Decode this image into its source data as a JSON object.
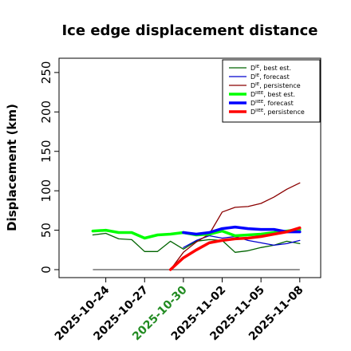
{
  "chart_data": {
    "type": "line",
    "title": "Ice edge displacement distance",
    "xlabel": "",
    "ylabel": "Displacement (km)",
    "ylim": [
      0,
      260
    ],
    "y_ticks": [
      0,
      50,
      100,
      150,
      200,
      250
    ],
    "x_day_range": [
      "2025-10-21",
      "2025-11-09"
    ],
    "x_ticks": [
      {
        "date": "2025-10-24",
        "label": "2025-10-24",
        "color": "#000000"
      },
      {
        "date": "2025-10-27",
        "label": "2025-10-27",
        "color": "#000000"
      },
      {
        "date": "2025-10-30",
        "label": "2025-10-30",
        "color": "#228B22"
      },
      {
        "date": "2025-11-02",
        "label": "2025-11-02",
        "color": "#000000"
      },
      {
        "date": "2025-11-05",
        "label": "2025-11-05",
        "color": "#000000"
      },
      {
        "date": "2025-11-08",
        "label": "2025-11-08",
        "color": "#000000"
      }
    ],
    "reference_line": {
      "value": 0,
      "from": "2025-10-23",
      "to": "2025-11-08",
      "color": "#555555"
    },
    "legend_position": "top-right",
    "series": [
      {
        "name": "D^IE, best est.",
        "label_base": "D",
        "label_sup": "IE",
        "label_rest": ", best est.",
        "color": "#006400",
        "width": 1.3,
        "x": [
          "2025-10-23",
          "2025-10-24",
          "2025-10-25",
          "2025-10-26",
          "2025-10-27",
          "2025-10-28",
          "2025-10-29",
          "2025-10-30",
          "2025-10-31",
          "2025-11-01",
          "2025-11-02",
          "2025-11-03",
          "2025-11-04",
          "2025-11-05",
          "2025-11-06",
          "2025-11-07",
          "2025-11-08"
        ],
        "y": [
          44,
          46,
          39,
          38,
          23,
          23,
          36,
          26,
          36,
          38,
          37,
          22,
          24,
          28,
          31,
          36,
          33
        ]
      },
      {
        "name": "D^IE, forecast",
        "label_base": "D",
        "label_sup": "IE",
        "label_rest": ", forecast",
        "color": "#0000CD",
        "width": 1.3,
        "x": [
          "2025-10-30",
          "2025-10-31",
          "2025-11-01",
          "2025-11-02",
          "2025-11-03",
          "2025-11-04",
          "2025-11-05",
          "2025-11-06",
          "2025-11-07",
          "2025-11-08"
        ],
        "y": [
          28,
          37,
          43,
          40,
          42,
          37,
          34,
          31,
          33,
          37
        ]
      },
      {
        "name": "D^IE, persistence",
        "label_base": "D",
        "label_sup": "IE",
        "label_rest": ", persistence",
        "color": "#8B0000",
        "width": 1.3,
        "x": [
          "2025-10-29",
          "2025-10-30",
          "2025-10-31",
          "2025-11-01",
          "2025-11-02",
          "2025-11-03",
          "2025-11-04",
          "2025-11-05",
          "2025-11-06",
          "2025-11-07",
          "2025-11-08"
        ],
        "y": [
          0,
          22,
          35,
          45,
          73,
          79,
          80,
          84,
          92,
          102,
          110
        ]
      },
      {
        "name": "D^IIEE, best est.",
        "label_base": "D",
        "label_sup": "IIEE",
        "label_rest": ", best est.",
        "color": "#00FF00",
        "width": 3.5,
        "x": [
          "2025-10-23",
          "2025-10-24",
          "2025-10-25",
          "2025-10-26",
          "2025-10-27",
          "2025-10-28",
          "2025-10-29",
          "2025-10-30",
          "2025-10-31",
          "2025-11-01",
          "2025-11-02",
          "2025-11-03",
          "2025-11-04",
          "2025-11-05",
          "2025-11-06",
          "2025-11-07",
          "2025-11-08"
        ],
        "y": [
          49,
          50,
          47,
          47,
          40,
          44,
          45,
          47,
          44,
          45,
          49,
          43,
          44,
          45,
          47,
          49,
          51
        ]
      },
      {
        "name": "D^IIEE, forecast",
        "label_base": "D",
        "label_sup": "IIEE",
        "label_rest": ", forecast",
        "color": "#0000FF",
        "width": 3.5,
        "x": [
          "2025-10-30",
          "2025-10-31",
          "2025-11-01",
          "2025-11-02",
          "2025-11-03",
          "2025-11-04",
          "2025-11-05",
          "2025-11-06",
          "2025-11-07",
          "2025-11-08"
        ],
        "y": [
          47,
          45,
          47,
          52,
          54,
          52,
          51,
          51,
          48,
          48
        ]
      },
      {
        "name": "D^IIEE, persistence",
        "label_base": "D",
        "label_sup": "IIEE",
        "label_rest": ", persistence",
        "color": "#FF0000",
        "width": 3.5,
        "x": [
          "2025-10-29",
          "2025-10-30",
          "2025-10-31",
          "2025-11-01",
          "2025-11-02",
          "2025-11-03",
          "2025-11-04",
          "2025-11-05",
          "2025-11-06",
          "2025-11-07",
          "2025-11-08"
        ],
        "y": [
          0,
          15,
          25,
          34,
          37,
          39,
          40,
          42,
          45,
          48,
          53
        ]
      }
    ]
  }
}
